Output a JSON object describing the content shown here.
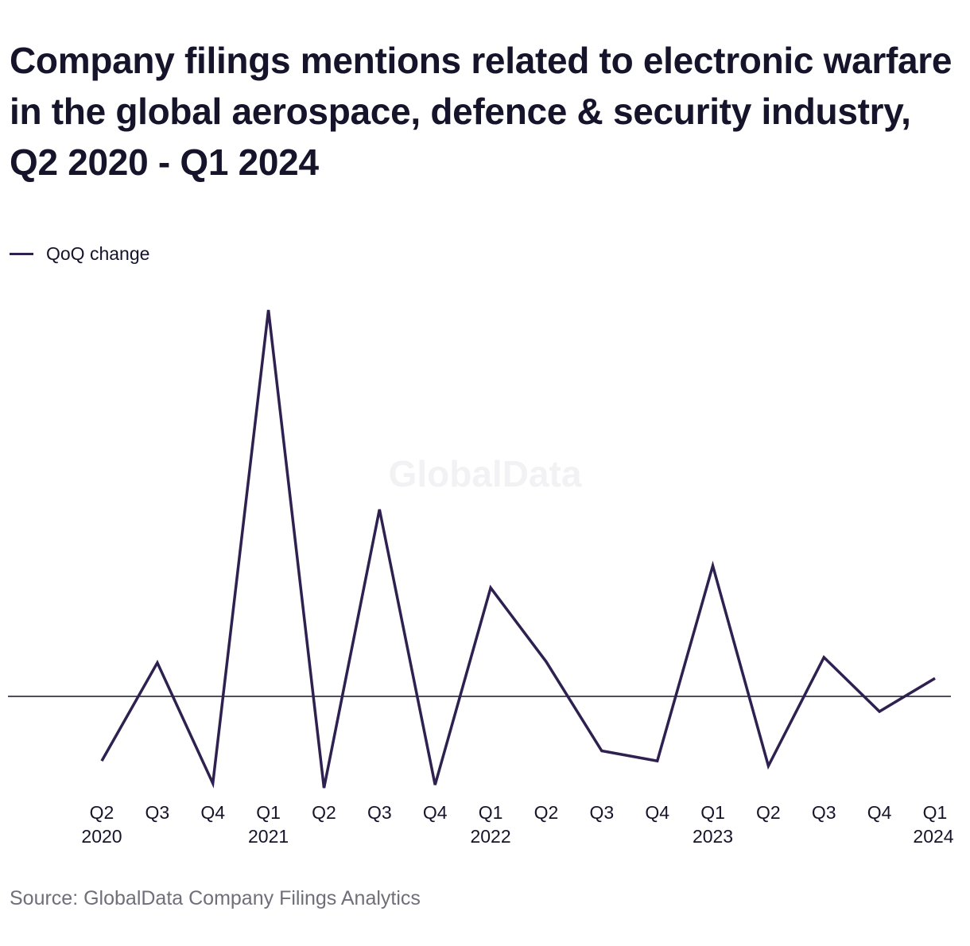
{
  "title": "Company filings mentions related to electronic warfare in the global aerospace, defence & security industry, Q2 2020 - Q1 2024",
  "legend": {
    "label": "QoQ change"
  },
  "watermark": "GlobalData",
  "source": "Source: GlobalData Company Filings Analytics",
  "colors": {
    "line": "#2e2150",
    "zero_line": "#15142b",
    "text": "#15142b",
    "muted": "#6f6f7a",
    "watermark": "#f2f2f5"
  },
  "chart_data": {
    "type": "line",
    "categories": [
      {
        "quarter": "Q2",
        "year": "2020"
      },
      {
        "quarter": "Q3",
        "year": ""
      },
      {
        "quarter": "Q4",
        "year": ""
      },
      {
        "quarter": "Q1",
        "year": "2021"
      },
      {
        "quarter": "Q2",
        "year": ""
      },
      {
        "quarter": "Q3",
        "year": ""
      },
      {
        "quarter": "Q4",
        "year": ""
      },
      {
        "quarter": "Q1",
        "year": "2022"
      },
      {
        "quarter": "Q2",
        "year": ""
      },
      {
        "quarter": "Q3",
        "year": ""
      },
      {
        "quarter": "Q4",
        "year": ""
      },
      {
        "quarter": "Q1",
        "year": "2023"
      },
      {
        "quarter": "Q2",
        "year": ""
      },
      {
        "quarter": "Q3",
        "year": ""
      },
      {
        "quarter": "Q4",
        "year": ""
      },
      {
        "quarter": "Q1",
        "year": "2024"
      }
    ],
    "series": [
      {
        "name": "QoQ change",
        "values": [
          -16.7,
          8.7,
          -22.5,
          100.0,
          -23.7,
          48.4,
          -22.9,
          28.1,
          9.0,
          -14.1,
          -16.7,
          33.8,
          -18.0,
          10.1,
          -3.9,
          4.7
        ]
      }
    ],
    "ylim": [
      -24,
      100
    ],
    "zero_line": true,
    "grid": false,
    "y_axis_labels": false,
    "legend_position": "top-left"
  }
}
